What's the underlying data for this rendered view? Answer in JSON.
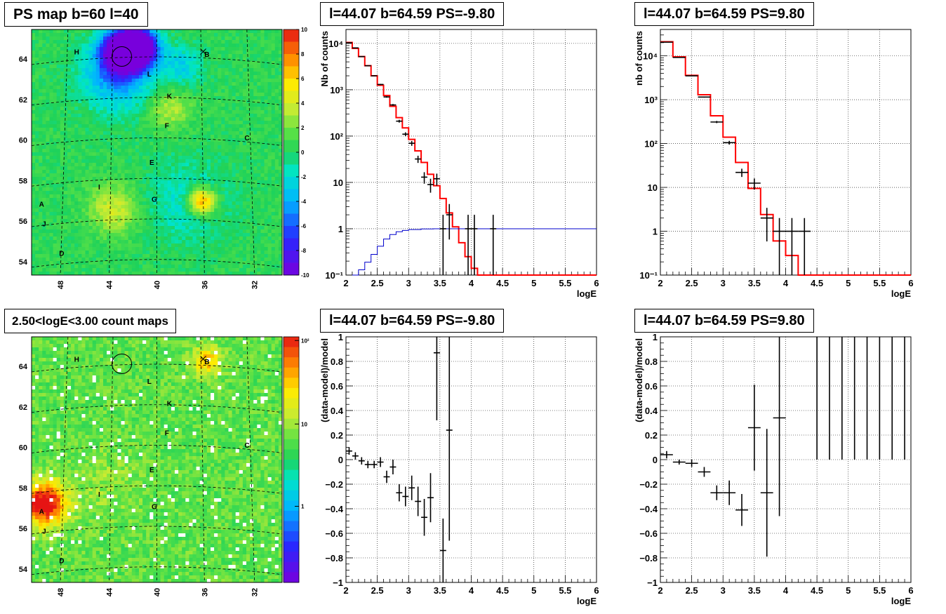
{
  "panels": {
    "ps_map_title": "PS map b=60 l=40",
    "count_map_title": "2.50<logE<3.00 count maps",
    "spec_neg_title": "l=44.07 b=64.59 PS=-9.80",
    "spec_pos_title": "l=44.07 b=64.59 PS=9.80",
    "resid_neg_title": "l=44.07 b=64.59 PS=-9.80",
    "resid_pos_title": "l=44.07 b=64.59 PS=9.80"
  },
  "colors": {
    "model_line": "#ff0000",
    "exposure_line": "#0000cc",
    "data_marker": "#000000"
  },
  "chart_data": [
    {
      "type": "heatmap",
      "title": "PS map b=60 l=40",
      "x_ticks": [
        "48",
        "44",
        "40",
        "36",
        "32"
      ],
      "y_ticks": [
        "54",
        "56",
        "58",
        "60",
        "62",
        "64"
      ],
      "colorbar_ticks": [
        "10",
        "8",
        "6",
        "4",
        "2",
        "0",
        "-2",
        "-4",
        "-6",
        "-8",
        "-10"
      ],
      "colorbar_range": [
        -10,
        10
      ],
      "sources": [
        "A",
        "B",
        "C",
        "D",
        "E",
        "F",
        "G",
        "H",
        "I",
        "J",
        "K",
        "L"
      ],
      "features": {
        "negative_spot_near": "H-L",
        "circled": true,
        "crossed_source": "B"
      }
    },
    {
      "type": "heatmap",
      "title": "2.50<logE<3.00 count maps",
      "x_ticks": [
        "48",
        "44",
        "40",
        "36",
        "32"
      ],
      "y_ticks": [
        "54",
        "56",
        "58",
        "60",
        "62",
        "64"
      ],
      "colorbar_ticks": [
        "10²",
        "10",
        "1"
      ],
      "log_scale": true,
      "sources": [
        "A",
        "B",
        "C",
        "D",
        "E",
        "F",
        "G",
        "H",
        "I",
        "J",
        "K",
        "L"
      ],
      "bright_sources": [
        "A",
        "B"
      ]
    },
    {
      "type": "line",
      "title": "l=44.07 b=64.59 PS=-9.80",
      "xlabel": "logE",
      "ylabel": "Nb of counts",
      "xlim": [
        2,
        6
      ],
      "ylim": [
        0.1,
        20000
      ],
      "log_y": true,
      "grid": true,
      "x_ticks": [
        "2",
        "2.5",
        "3",
        "3.5",
        "4",
        "4.5",
        "5",
        "5.5",
        "6"
      ],
      "y_ticks": [
        "10⁻¹",
        "1",
        "10",
        "10²",
        "10³",
        "10⁴"
      ],
      "series": [
        {
          "role": "model",
          "step_edges": [
            2.0,
            2.1,
            2.2,
            2.3,
            2.4,
            2.5,
            2.6,
            2.7,
            2.8,
            2.9,
            3.0,
            3.1,
            3.2,
            3.3,
            3.4,
            3.5,
            3.6,
            3.7,
            3.8,
            3.9,
            4.0,
            4.1,
            4.2,
            6.0
          ],
          "values": [
            10500,
            7800,
            5200,
            3300,
            2000,
            1250,
            750,
            440,
            250,
            150,
            85,
            48,
            27,
            15,
            8.5,
            4.5,
            2.2,
            1.1,
            0.5,
            0.25,
            0.14,
            0.1,
            0.1
          ]
        },
        {
          "role": "exposure",
          "x": [
            2.1,
            2.2,
            2.3,
            2.4,
            2.5,
            2.6,
            2.7,
            2.8,
            2.9,
            3.0,
            3.2,
            3.4,
            6.0
          ],
          "values": [
            0.1,
            0.13,
            0.19,
            0.28,
            0.42,
            0.6,
            0.75,
            0.86,
            0.92,
            0.96,
            0.99,
            1.0,
            1.0
          ]
        },
        {
          "role": "data",
          "x": [
            2.05,
            2.15,
            2.25,
            2.35,
            2.45,
            2.55,
            2.65,
            2.75,
            2.85,
            2.95,
            3.05,
            3.15,
            3.25,
            3.35,
            3.45,
            3.55,
            3.65,
            3.95,
            4.05,
            4.35
          ],
          "values": [
            10300,
            8000,
            5200,
            3300,
            2000,
            1300,
            700,
            470,
            210,
            110,
            70,
            32,
            13,
            9,
            12,
            1,
            2,
            1,
            1,
            1
          ]
        }
      ]
    },
    {
      "type": "line",
      "title": "l=44.07 b=64.59 PS=9.80",
      "xlabel": "logE",
      "ylabel": "nb of counts",
      "xlim": [
        2,
        6
      ],
      "ylim": [
        0.1,
        40000
      ],
      "log_y": true,
      "grid": true,
      "x_ticks": [
        "2",
        "2.5",
        "3",
        "3.5",
        "4",
        "4.5",
        "5",
        "5.5",
        "6"
      ],
      "y_ticks": [
        "10⁻¹",
        "1",
        "10",
        "10²",
        "10³",
        "10⁴"
      ],
      "series": [
        {
          "role": "model",
          "step_edges": [
            2.0,
            2.2,
            2.4,
            2.6,
            2.8,
            3.0,
            3.2,
            3.4,
            3.6,
            3.8,
            4.0,
            4.2,
            6.0
          ],
          "values": [
            21000,
            9500,
            3600,
            1300,
            430,
            140,
            37,
            9.5,
            2.4,
            0.6,
            0.28,
            0.1
          ]
        },
        {
          "role": "data",
          "x": [
            2.1,
            2.3,
            2.5,
            2.7,
            2.9,
            3.1,
            3.3,
            3.5,
            3.7,
            3.9,
            4.1,
            4.3
          ],
          "values": [
            20500,
            9200,
            3500,
            1150,
            310,
            105,
            22,
            12.5,
            2,
            1,
            1,
            1
          ]
        }
      ]
    },
    {
      "type": "scatter",
      "title": "l=44.07 b=64.59 PS=-9.80",
      "xlabel": "logE",
      "ylabel": "(data-model)/model",
      "xlim": [
        2,
        6
      ],
      "ylim": [
        -1,
        1
      ],
      "grid": true,
      "x_ticks": [
        "2",
        "2.5",
        "3",
        "3.5",
        "4",
        "4.5",
        "5",
        "5.5",
        "6"
      ],
      "y_ticks": [
        "−1",
        "−0.8",
        "−0.6",
        "−0.4",
        "−0.2",
        "0",
        "0.2",
        "0.4",
        "0.6",
        "0.8",
        "1"
      ],
      "points": [
        {
          "x": 2.05,
          "y": 0.07,
          "err": 0.03
        },
        {
          "x": 2.15,
          "y": 0.03,
          "err": 0.03
        },
        {
          "x": 2.25,
          "y": -0.01,
          "err": 0.03
        },
        {
          "x": 2.35,
          "y": -0.04,
          "err": 0.03
        },
        {
          "x": 2.45,
          "y": -0.04,
          "err": 0.03
        },
        {
          "x": 2.55,
          "y": -0.02,
          "err": 0.04
        },
        {
          "x": 2.65,
          "y": -0.14,
          "err": 0.05
        },
        {
          "x": 2.75,
          "y": -0.06,
          "err": 0.06
        },
        {
          "x": 2.85,
          "y": -0.27,
          "err": 0.07
        },
        {
          "x": 2.95,
          "y": -0.3,
          "err": 0.08
        },
        {
          "x": 3.05,
          "y": -0.23,
          "err": 0.1
        },
        {
          "x": 3.15,
          "y": -0.34,
          "err": 0.12
        },
        {
          "x": 3.25,
          "y": -0.47,
          "err": 0.15
        },
        {
          "x": 3.35,
          "y": -0.31,
          "err": 0.2
        },
        {
          "x": 3.45,
          "y": 0.87,
          "err": 0.55
        },
        {
          "x": 3.55,
          "y": -0.74,
          "err": 0.26
        },
        {
          "x": 3.65,
          "y": 0.24,
          "err": 0.9
        }
      ]
    },
    {
      "type": "scatter",
      "title": "l=44.07 b=64.59 PS=9.80",
      "xlabel": "logE",
      "ylabel": "(data-model)/model",
      "xlim": [
        2,
        6
      ],
      "ylim": [
        -1,
        1
      ],
      "grid": true,
      "x_ticks": [
        "2",
        "2.5",
        "3",
        "3.5",
        "4",
        "4.5",
        "5",
        "5.5",
        "6"
      ],
      "y_ticks": [
        "−1",
        "−0.8",
        "−0.6",
        "−0.4",
        "−0.2",
        "0",
        "0.2",
        "0.4",
        "0.6",
        "0.8",
        "1"
      ],
      "points": [
        {
          "x": 2.1,
          "y": 0.04,
          "err": 0.03
        },
        {
          "x": 2.3,
          "y": -0.02,
          "err": 0.02
        },
        {
          "x": 2.5,
          "y": -0.03,
          "err": 0.03
        },
        {
          "x": 2.7,
          "y": -0.1,
          "err": 0.04
        },
        {
          "x": 2.9,
          "y": -0.27,
          "err": 0.06
        },
        {
          "x": 3.1,
          "y": -0.27,
          "err": 0.1
        },
        {
          "x": 3.3,
          "y": -0.41,
          "err": 0.13
        },
        {
          "x": 3.5,
          "y": 0.26,
          "err": 0.35
        },
        {
          "x": 3.7,
          "y": -0.27,
          "err": 0.52
        },
        {
          "x": 3.9,
          "y": 0.34,
          "err": 0.8
        },
        {
          "x": 4.5,
          "y": 1,
          "err": 1
        },
        {
          "x": 4.7,
          "y": 1,
          "err": 1
        },
        {
          "x": 4.9,
          "y": 1,
          "err": 1
        },
        {
          "x": 5.1,
          "y": 1,
          "err": 1
        },
        {
          "x": 5.3,
          "y": 1,
          "err": 1
        },
        {
          "x": 5.5,
          "y": 1,
          "err": 1
        },
        {
          "x": 5.7,
          "y": 1,
          "err": 1
        },
        {
          "x": 5.9,
          "y": 1,
          "err": 1
        }
      ]
    }
  ]
}
